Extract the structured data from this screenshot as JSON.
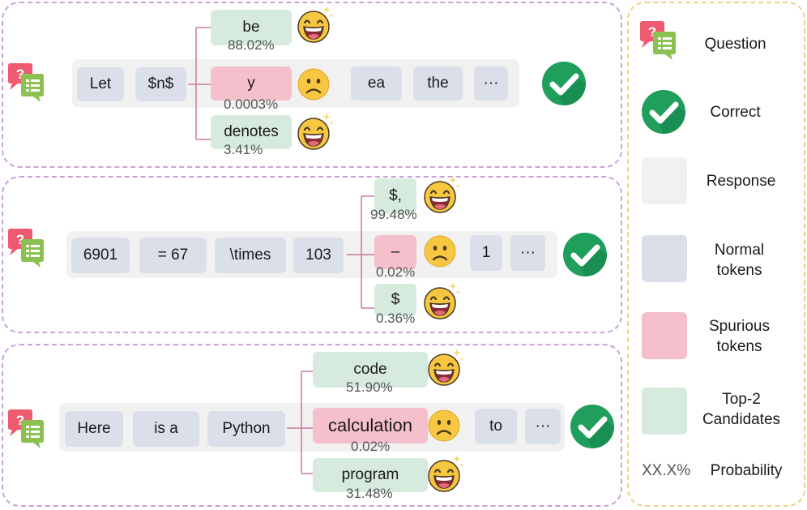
{
  "colors": {
    "panel_border": "#c9a3d8",
    "legend_border": "#f3cf84",
    "response": "#f1f1f1",
    "normal": "#dbdfe9",
    "spurious": "#f5bfcc",
    "top2": "#d6ebde",
    "check": "#1f9e5c",
    "bracket": "#c97aa0"
  },
  "rows": [
    {
      "tokens": [
        "Let",
        "$n$"
      ],
      "candidates": [
        {
          "text": "be",
          "prob": "88.02%",
          "kind": "top2",
          "face": "grin"
        },
        {
          "text": "y",
          "prob": "0.0003%",
          "kind": "spurious",
          "face": "frown"
        },
        {
          "text": "denotes",
          "prob": "3.41%",
          "kind": "top2",
          "face": "grin"
        }
      ],
      "after": [
        "ea",
        "the",
        "···"
      ]
    },
    {
      "tokens": [
        "6901",
        "= 67",
        "\\times",
        "103"
      ],
      "candidates": [
        {
          "text": "$,",
          "prob": "99.48%",
          "kind": "top2",
          "face": "grin"
        },
        {
          "text": "–",
          "prob": "0.02%",
          "kind": "spurious",
          "face": "frown"
        },
        {
          "text": "$",
          "prob": "0.36%",
          "kind": "top2",
          "face": "grin"
        }
      ],
      "after": [
        "1",
        "···"
      ]
    },
    {
      "tokens": [
        "Here",
        "is a",
        "Python"
      ],
      "candidates": [
        {
          "text": "code",
          "prob": "51.90%",
          "kind": "top2",
          "face": "grin"
        },
        {
          "text": "calculation",
          "prob": "0.02%",
          "kind": "spurious",
          "face": "frown"
        },
        {
          "text": "program",
          "prob": "31.48%",
          "kind": "top2",
          "face": "grin"
        }
      ],
      "after": [
        "to",
        "···"
      ]
    }
  ],
  "legend": {
    "question": "Question",
    "correct": "Correct",
    "response": "Response",
    "normal_line1": "Normal",
    "normal_line2": "tokens",
    "spurious_line1": "Spurious",
    "spurious_line2": "tokens",
    "top2_line1": "Top-2",
    "top2_line2": "Candidates",
    "prob_symbol": "XX.X%",
    "prob_label": "Probability"
  }
}
